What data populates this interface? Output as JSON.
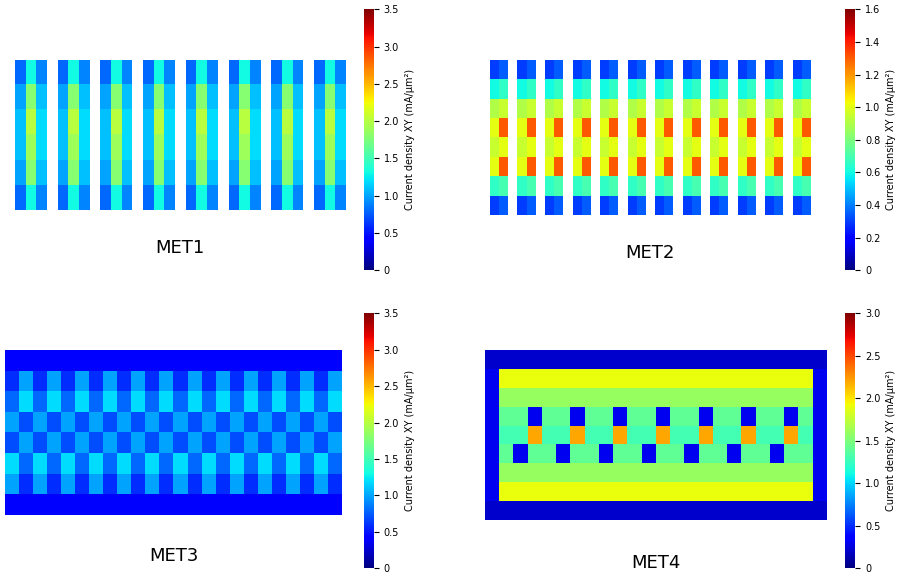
{
  "chart_data": [
    {
      "type": "heatmap",
      "title": "MET1",
      "tick_labels": false,
      "colorbar_label": "Current density XY (mA/μm²)",
      "color_range": [
        0,
        3.5
      ],
      "color_ticks": [
        0,
        0.5,
        {
          "value": 1,
          "label": "1.0"
        },
        1.5,
        {
          "value": 2,
          "label": "2.0"
        },
        2.5,
        {
          "value": 3,
          "label": "3.0"
        },
        3.5
      ],
      "cells": [
        [
          0.8,
          1.3,
          0.9,
          null,
          0.8,
          1.3,
          0.9,
          null,
          0.8,
          1.3,
          0.9,
          null,
          0.8,
          1.3,
          0.9,
          null,
          0.8,
          1.3,
          0.9,
          null,
          0.8,
          1.3,
          0.9,
          null,
          0.8,
          1.3,
          0.9,
          null,
          0.8,
          1.3,
          0.9
        ],
        [
          1.0,
          1.8,
          1.1,
          null,
          1.0,
          1.8,
          1.1,
          null,
          1.0,
          1.8,
          1.1,
          null,
          1.0,
          1.8,
          1.1,
          null,
          1.0,
          1.8,
          1.1,
          null,
          1.0,
          1.8,
          1.1,
          null,
          1.0,
          1.8,
          1.1,
          null,
          1.0,
          1.8,
          1.1
        ],
        [
          1.1,
          2.0,
          1.2,
          null,
          1.1,
          2.0,
          1.2,
          null,
          1.1,
          2.0,
          1.2,
          null,
          1.1,
          2.0,
          1.2,
          null,
          1.1,
          2.0,
          1.2,
          null,
          1.1,
          2.0,
          1.2,
          null,
          1.1,
          2.0,
          1.2,
          null,
          1.1,
          2.0,
          1.2
        ],
        [
          1.1,
          1.9,
          1.2,
          null,
          1.1,
          1.9,
          1.2,
          null,
          1.1,
          1.9,
          1.2,
          null,
          1.1,
          1.9,
          1.2,
          null,
          1.1,
          1.9,
          1.2,
          null,
          1.1,
          1.9,
          1.2,
          null,
          1.1,
          1.9,
          1.2,
          null,
          1.1,
          1.9,
          1.2
        ],
        [
          1.0,
          1.8,
          1.1,
          null,
          1.0,
          1.8,
          1.1,
          null,
          1.0,
          1.8,
          1.1,
          null,
          1.0,
          1.8,
          1.1,
          null,
          1.0,
          1.8,
          1.1,
          null,
          1.0,
          1.8,
          1.1,
          null,
          1.0,
          1.8,
          1.1,
          null,
          1.0,
          1.8,
          1.1
        ],
        [
          0.8,
          1.3,
          0.9,
          null,
          0.8,
          1.3,
          0.9,
          null,
          0.8,
          1.3,
          0.9,
          null,
          0.8,
          1.3,
          0.9,
          null,
          0.8,
          1.3,
          0.9,
          null,
          0.8,
          1.3,
          0.9,
          null,
          0.8,
          1.3,
          0.9,
          null,
          0.8,
          1.3,
          0.9
        ]
      ]
    },
    {
      "type": "heatmap",
      "title": "MET2",
      "tick_labels": false,
      "colorbar_label": "Current density XY (mA/μm²)",
      "color_range": [
        0,
        1.6
      ],
      "color_ticks": [
        0,
        0.2,
        0.4,
        0.6,
        0.8,
        {
          "value": 1,
          "label": "1.0"
        },
        1.2,
        1.4,
        1.6
      ],
      "cells": [
        [
          0.3,
          0.35,
          null,
          0.3,
          0.35,
          null,
          0.3,
          0.35,
          null,
          0.3,
          0.35,
          null,
          0.3,
          0.35,
          null,
          0.3,
          0.35,
          null,
          0.3,
          0.35,
          null,
          0.3,
          0.35,
          null,
          0.3,
          0.35,
          null,
          0.3,
          0.35,
          null,
          0.3,
          0.35,
          null,
          0.3,
          0.35
        ],
        [
          0.6,
          0.65,
          null,
          0.6,
          0.65,
          null,
          0.6,
          0.65,
          null,
          0.6,
          0.65,
          null,
          0.6,
          0.65,
          null,
          0.6,
          0.65,
          null,
          0.6,
          0.65,
          null,
          0.6,
          0.65,
          null,
          0.6,
          0.65,
          null,
          0.6,
          0.65,
          null,
          0.6,
          0.65,
          null,
          0.6,
          0.65
        ],
        [
          0.9,
          0.95,
          null,
          0.9,
          0.95,
          null,
          0.9,
          0.95,
          null,
          0.9,
          0.95,
          null,
          0.9,
          0.95,
          null,
          0.9,
          0.95,
          null,
          0.9,
          0.95,
          null,
          0.9,
          0.95,
          null,
          0.9,
          0.95,
          null,
          0.9,
          0.95,
          null,
          0.9,
          0.95,
          null,
          0.9,
          0.95
        ],
        [
          1.0,
          1.3,
          null,
          1.0,
          1.3,
          null,
          1.0,
          1.3,
          null,
          1.0,
          1.3,
          null,
          1.0,
          1.3,
          null,
          1.0,
          1.3,
          null,
          1.0,
          1.3,
          null,
          1.0,
          1.3,
          null,
          1.0,
          1.3,
          null,
          1.0,
          1.3,
          null,
          1.0,
          1.3,
          null,
          1.0,
          1.3
        ],
        [
          0.95,
          1.0,
          null,
          0.95,
          1.0,
          null,
          0.95,
          1.0,
          null,
          0.95,
          1.0,
          null,
          0.95,
          1.0,
          null,
          0.95,
          1.0,
          null,
          0.95,
          1.0,
          null,
          0.95,
          1.0,
          null,
          0.95,
          1.0,
          null,
          0.95,
          1.0,
          null,
          0.95,
          1.0,
          null,
          0.95,
          1.0
        ],
        [
          1.0,
          1.3,
          null,
          1.0,
          1.3,
          null,
          1.0,
          1.3,
          null,
          1.0,
          1.3,
          null,
          1.0,
          1.3,
          null,
          1.0,
          1.3,
          null,
          1.0,
          1.3,
          null,
          1.0,
          1.3,
          null,
          1.0,
          1.3,
          null,
          1.0,
          1.3,
          null,
          1.0,
          1.3,
          null,
          1.0,
          1.3
        ],
        [
          0.65,
          0.7,
          null,
          0.65,
          0.7,
          null,
          0.65,
          0.7,
          null,
          0.65,
          0.7,
          null,
          0.65,
          0.7,
          null,
          0.65,
          0.7,
          null,
          0.65,
          0.7,
          null,
          0.65,
          0.7,
          null,
          0.65,
          0.7,
          null,
          0.65,
          0.7,
          null,
          0.65,
          0.7,
          null,
          0.65,
          0.7
        ],
        [
          0.3,
          0.35,
          null,
          0.3,
          0.35,
          null,
          0.3,
          0.35,
          null,
          0.3,
          0.35,
          null,
          0.3,
          0.35,
          null,
          0.3,
          0.35,
          null,
          0.3,
          0.35,
          null,
          0.3,
          0.35,
          null,
          0.3,
          0.35,
          null,
          0.3,
          0.35,
          null,
          0.3,
          0.35,
          null,
          0.3,
          0.35
        ]
      ]
    },
    {
      "type": "heatmap",
      "title": "MET3",
      "tick_labels": false,
      "colorbar_label": "Current density XY (mA/μm²)",
      "color_range": [
        0,
        3.5
      ],
      "color_ticks": [
        0,
        0.5,
        {
          "value": 1,
          "label": "1.0"
        },
        1.5,
        {
          "value": 2,
          "label": "2.0"
        },
        2.5,
        {
          "value": 3,
          "label": "3.0"
        },
        3.5
      ],
      "cells": [
        [
          0.4,
          0.4,
          0.4,
          0.4,
          0.4,
          0.4,
          0.4,
          0.4,
          0.4,
          0.4,
          0.4,
          0.4,
          0.4,
          0.4,
          0.4,
          0.4,
          0.4,
          0.4,
          0.4,
          0.4,
          0.4,
          0.4,
          0.4,
          0.4
        ],
        [
          0.6,
          1.0,
          0.6,
          1.0,
          0.6,
          1.0,
          0.6,
          1.0,
          0.6,
          1.0,
          0.6,
          1.0,
          0.6,
          1.0,
          0.6,
          1.0,
          0.6,
          1.0,
          0.6,
          1.0,
          0.6,
          1.0,
          0.6,
          1.0
        ],
        [
          0.8,
          1.2,
          0.8,
          1.2,
          0.8,
          1.2,
          0.8,
          1.2,
          0.8,
          1.2,
          0.8,
          1.2,
          0.8,
          1.2,
          0.8,
          1.2,
          0.8,
          1.2,
          0.8,
          1.2,
          0.8,
          1.2,
          0.8,
          1.2
        ],
        [
          1.0,
          0.7,
          1.0,
          0.7,
          1.0,
          0.7,
          1.0,
          0.7,
          1.0,
          0.7,
          1.0,
          0.7,
          1.0,
          0.7,
          1.0,
          0.7,
          1.0,
          0.7,
          1.0,
          0.7,
          1.0,
          0.7,
          1.0,
          0.7
        ],
        [
          0.7,
          1.0,
          0.7,
          1.0,
          0.7,
          1.0,
          0.7,
          1.0,
          0.7,
          1.0,
          0.7,
          1.0,
          0.7,
          1.0,
          0.7,
          1.0,
          0.7,
          1.0,
          0.7,
          1.0,
          0.7,
          1.0,
          0.7,
          1.0
        ],
        [
          1.2,
          0.8,
          1.2,
          0.8,
          1.2,
          0.8,
          1.2,
          0.8,
          1.2,
          0.8,
          1.2,
          0.8,
          1.2,
          0.8,
          1.2,
          0.8,
          1.2,
          0.8,
          1.2,
          0.8,
          1.2,
          0.8,
          1.2,
          0.8
        ],
        [
          1.0,
          0.6,
          1.0,
          0.6,
          1.0,
          0.6,
          1.0,
          0.6,
          1.0,
          0.6,
          1.0,
          0.6,
          1.0,
          0.6,
          1.0,
          0.6,
          1.0,
          0.6,
          1.0,
          0.6,
          1.0,
          0.6,
          1.0,
          0.6
        ],
        [
          0.4,
          0.4,
          0.4,
          0.4,
          0.4,
          0.4,
          0.4,
          0.4,
          0.4,
          0.4,
          0.4,
          0.4,
          0.4,
          0.4,
          0.4,
          0.4,
          0.4,
          0.4,
          0.4,
          0.4,
          0.4,
          0.4,
          0.4,
          0.4
        ]
      ]
    },
    {
      "type": "heatmap",
      "title": "MET4",
      "tick_labels": false,
      "colorbar_label": "Current density XY (mA/μm²)",
      "color_range": [
        0,
        3.0
      ],
      "color_ticks": [
        0,
        0.5,
        {
          "value": 1,
          "label": "1.0"
        },
        1.5,
        {
          "value": 2,
          "label": "2.0"
        },
        2.5,
        {
          "value": 3,
          "label": "3.0"
        }
      ],
      "cells": [
        [
          0.2,
          0.2,
          0.2,
          0.2,
          0.2,
          0.2,
          0.2,
          0.2,
          0.2,
          0.2,
          0.2,
          0.2,
          0.2,
          0.2,
          0.2,
          0.2,
          0.2,
          0.2,
          0.2,
          0.2,
          0.2,
          0.2,
          0.2,
          0.2
        ],
        [
          0.3,
          1.9,
          1.9,
          1.9,
          1.9,
          1.9,
          1.9,
          1.9,
          1.9,
          1.9,
          1.9,
          1.9,
          1.9,
          1.9,
          1.9,
          1.9,
          1.9,
          1.9,
          1.9,
          1.9,
          1.9,
          1.9,
          1.9,
          0.3
        ],
        [
          0.3,
          1.6,
          1.6,
          1.6,
          1.6,
          1.6,
          1.6,
          1.6,
          1.6,
          1.6,
          1.6,
          1.6,
          1.6,
          1.6,
          1.6,
          1.6,
          1.6,
          1.6,
          1.6,
          1.6,
          1.6,
          1.6,
          1.6,
          0.3
        ],
        [
          0.3,
          1.4,
          1.4,
          0.3,
          1.4,
          1.4,
          0.3,
          1.4,
          1.4,
          0.3,
          1.4,
          1.4,
          0.3,
          1.4,
          1.4,
          0.3,
          1.4,
          1.4,
          0.3,
          1.4,
          1.4,
          0.3,
          1.4,
          0.3
        ],
        [
          0.3,
          1.3,
          1.3,
          2.2,
          1.3,
          1.3,
          2.2,
          1.3,
          1.3,
          2.2,
          1.3,
          1.3,
          2.2,
          1.3,
          1.3,
          2.2,
          1.3,
          1.3,
          2.2,
          1.3,
          1.3,
          2.2,
          1.3,
          0.3
        ],
        [
          0.3,
          1.4,
          0.3,
          1.4,
          1.4,
          0.3,
          1.4,
          1.4,
          0.3,
          1.4,
          1.4,
          0.3,
          1.4,
          1.4,
          0.3,
          1.4,
          1.4,
          0.3,
          1.4,
          1.4,
          0.3,
          1.4,
          1.4,
          0.3
        ],
        [
          0.3,
          1.6,
          1.6,
          1.6,
          1.6,
          1.6,
          1.6,
          1.6,
          1.6,
          1.6,
          1.6,
          1.6,
          1.6,
          1.6,
          1.6,
          1.6,
          1.6,
          1.6,
          1.6,
          1.6,
          1.6,
          1.6,
          1.6,
          0.3
        ],
        [
          0.3,
          1.9,
          1.9,
          1.9,
          1.9,
          1.9,
          1.9,
          1.9,
          1.9,
          1.9,
          1.9,
          1.9,
          1.9,
          1.9,
          1.9,
          1.9,
          1.9,
          1.9,
          1.9,
          1.9,
          1.9,
          1.9,
          1.9,
          0.3
        ],
        [
          0.2,
          0.2,
          0.2,
          0.2,
          0.2,
          0.2,
          0.2,
          0.2,
          0.2,
          0.2,
          0.2,
          0.2,
          0.2,
          0.2,
          0.2,
          0.2,
          0.2,
          0.2,
          0.2,
          0.2,
          0.2,
          0.2,
          0.2,
          0.2
        ]
      ]
    }
  ]
}
